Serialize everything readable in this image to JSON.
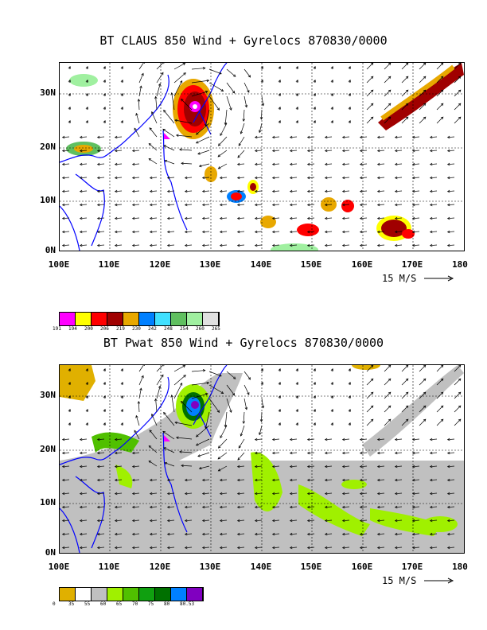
{
  "panel1": {
    "title": "BT CLAUS 850 Wind + Gyrelocs 870830/0000",
    "y_ticks": [
      "30N",
      "20N",
      "10N",
      "0N"
    ],
    "x_ticks": [
      "100E",
      "110E",
      "120E",
      "130E",
      "140E",
      "150E",
      "160E",
      "170E",
      "180"
    ],
    "vector_scale": "15 M/S",
    "legend_colors": [
      "#ff00ff",
      "#ffff00",
      "#ff0000",
      "#a00000",
      "#e8a800",
      "#0080ff",
      "#40e0ff",
      "#60c060",
      "#a0f0a0",
      "#e0e0e0"
    ],
    "legend_labels": [
      "191",
      "194",
      "200",
      "206",
      "219",
      "230",
      "242",
      "248",
      "254",
      "260",
      "265"
    ]
  },
  "panel2": {
    "title": "BT Pwat 850 Wind + Gyrelocs 870830/0000",
    "y_ticks": [
      "30N",
      "20N",
      "10N",
      "0N"
    ],
    "x_ticks": [
      "100E",
      "110E",
      "120E",
      "130E",
      "140E",
      "150E",
      "160E",
      "170E",
      "180"
    ],
    "vector_scale": "15 M/S",
    "legend_colors": [
      "#e0b000",
      "#ffffff",
      "#c0c0c0",
      "#a0f000",
      "#50c000",
      "#10a010",
      "#007000",
      "#0080ff",
      "#8000c0"
    ],
    "legend_labels": [
      "0",
      "35",
      "55",
      "60",
      "65",
      "70",
      "75",
      "80",
      "80.53"
    ]
  },
  "colors": {
    "coast": "#0000ff",
    "gyre_marker": "#ff00ff"
  }
}
